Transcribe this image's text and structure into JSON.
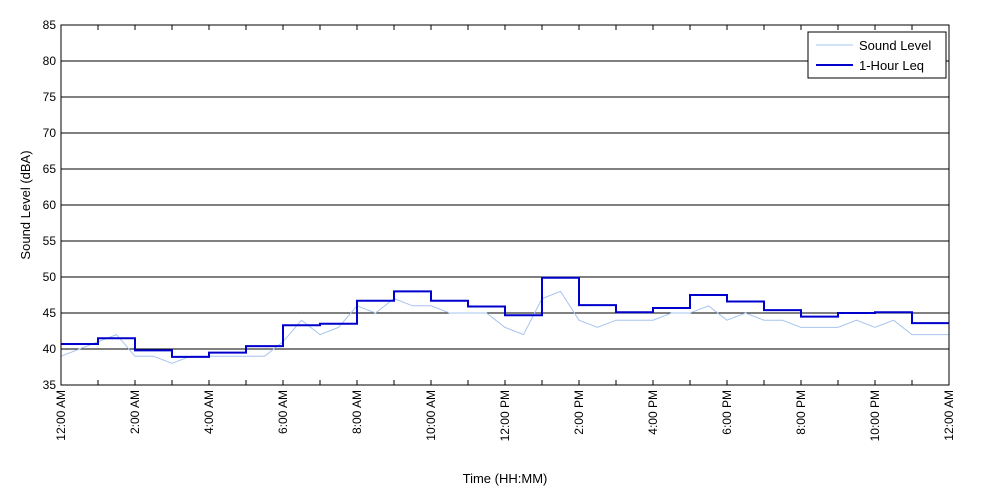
{
  "chart_data": {
    "type": "line",
    "xlabel": "Time (HH:MM)",
    "ylabel": "Sound Level (dBA)",
    "ylim": [
      35,
      85
    ],
    "xlim_hours": [
      0,
      24
    ],
    "grid": "horizontal",
    "legend_position": "top-right",
    "yticks": [
      35,
      40,
      45,
      50,
      55,
      60,
      65,
      70,
      75,
      80,
      85
    ],
    "xtick_hours": [
      0,
      2,
      4,
      6,
      8,
      10,
      12,
      14,
      16,
      18,
      20,
      22,
      24
    ],
    "xtick_labels": [
      "12:00 AM",
      "2:00 AM",
      "4:00 AM",
      "6:00 AM",
      "8:00 AM",
      "10:00 AM",
      "12:00 PM",
      "2:00 PM",
      "4:00 PM",
      "6:00 PM",
      "8:00 PM",
      "10:00 PM",
      "12:00 AM"
    ],
    "colors": {
      "sound_level": "#a9c4f0",
      "leq": "#0000cc",
      "grid": "#000000",
      "axis": "#000000"
    },
    "series": [
      {
        "name": "Sound Level",
        "x_hours": [
          0,
          0.5,
          1,
          1.5,
          2,
          2.5,
          3,
          3.5,
          4,
          4.5,
          5,
          5.5,
          6,
          6.5,
          7,
          7.5,
          8,
          8.5,
          9,
          9.5,
          10,
          10.5,
          11,
          11.5,
          12,
          12.5,
          13,
          13.5,
          14,
          14.5,
          15,
          15.5,
          16,
          16.5,
          17,
          17.5,
          18,
          18.5,
          19,
          19.5,
          20,
          20.5,
          21,
          21.5,
          22,
          22.5,
          23,
          23.5,
          24
        ],
        "values": [
          39,
          40,
          41,
          42,
          39,
          39,
          38,
          39,
          39,
          39,
          39,
          39,
          41,
          44,
          42,
          43,
          46,
          45,
          47,
          46,
          46,
          45,
          45,
          45,
          43,
          42,
          47,
          48,
          44,
          43,
          44,
          44,
          44,
          45,
          45,
          46,
          44,
          45,
          44,
          44,
          43,
          43,
          43,
          44,
          43,
          44,
          42,
          42,
          42
        ]
      },
      {
        "name": "1-Hour Leq",
        "x_hours": [
          0,
          1,
          2,
          3,
          4,
          5,
          6,
          7,
          8,
          9,
          10,
          11,
          12,
          13,
          14,
          15,
          16,
          17,
          18,
          19,
          20,
          21,
          22,
          23
        ],
        "values": [
          40.7,
          41.5,
          39.8,
          38.9,
          39.5,
          40.4,
          43.3,
          43.5,
          46.7,
          48.0,
          46.7,
          45.9,
          44.7,
          49.9,
          46.1,
          45.1,
          45.7,
          47.5,
          46.6,
          45.4,
          44.5,
          45.0,
          45.1,
          43.6
        ]
      }
    ]
  }
}
